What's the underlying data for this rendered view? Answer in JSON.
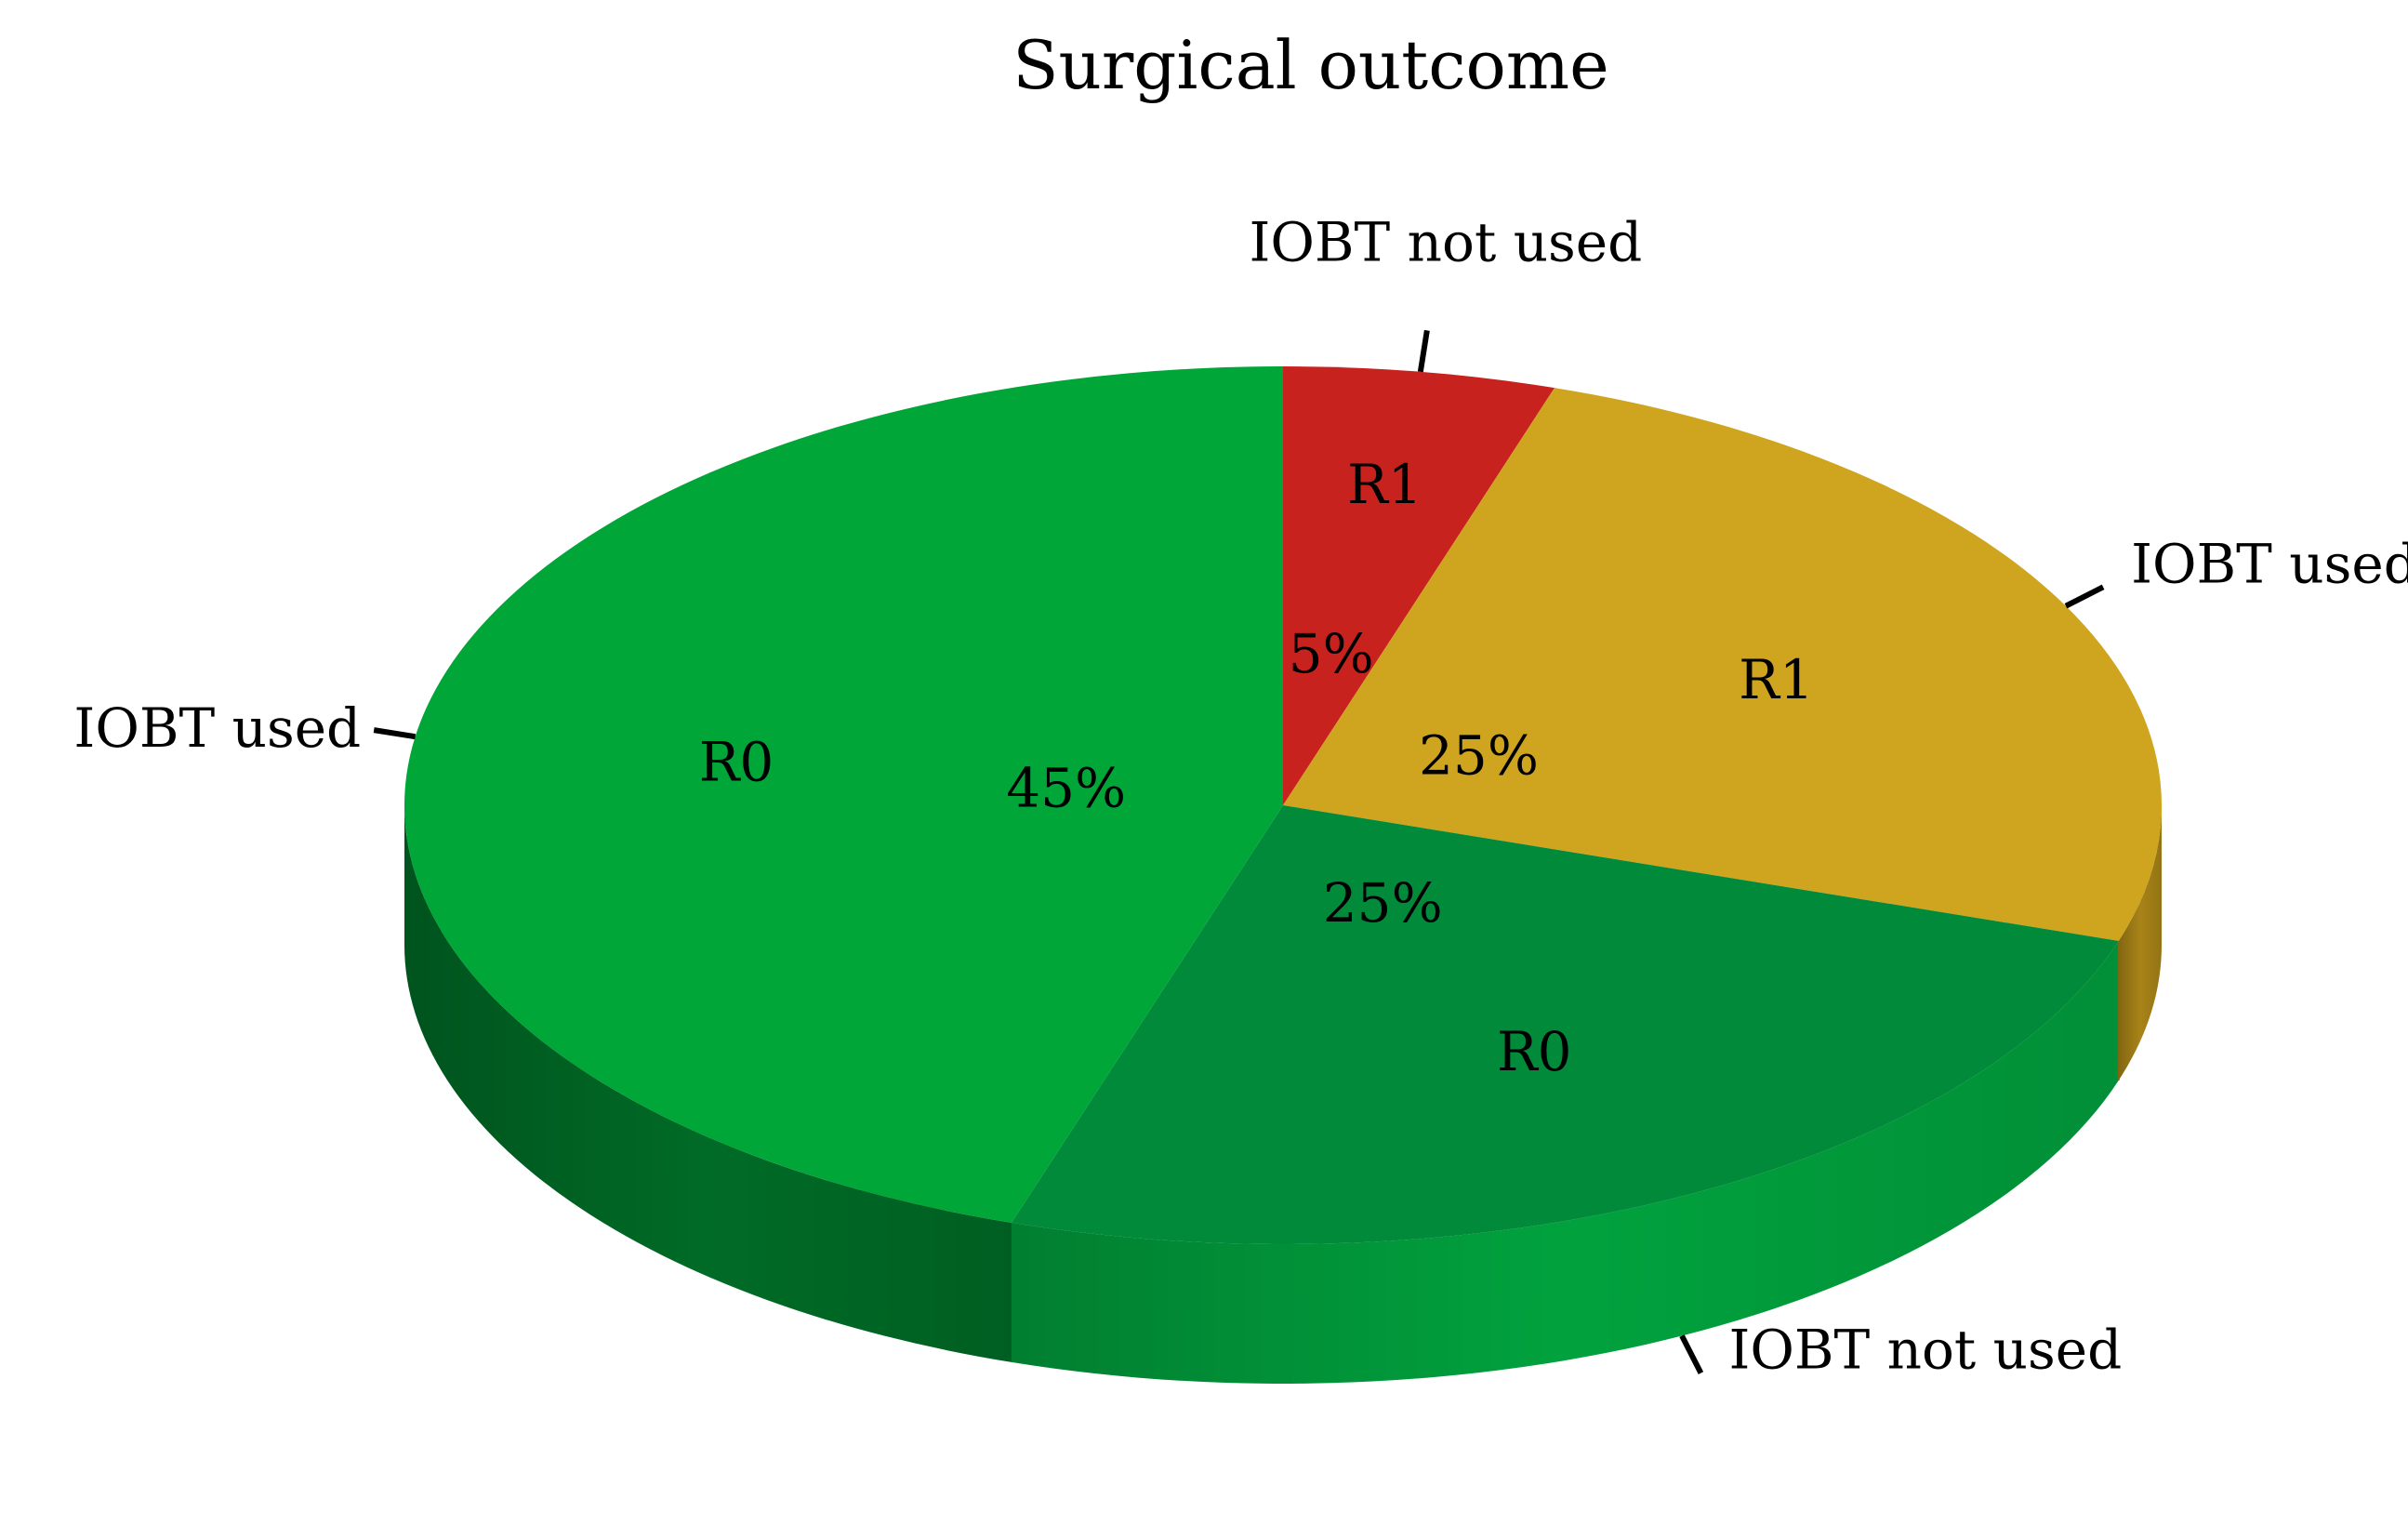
{
  "chart_data": {
    "type": "pie",
    "title": "Surgical outcome",
    "three_d": true,
    "start_angle_deg": 0,
    "direction": "clockwise",
    "slices": [
      {
        "outcome": "R1",
        "category": "IOBT not used",
        "value": 5,
        "label": "5%",
        "color": "#c8221f",
        "side_color": "#8c1714"
      },
      {
        "outcome": "R1",
        "category": "IOBT used",
        "value": 25,
        "label": "25%",
        "color": "#cfa51f",
        "side_color": "#a88317"
      },
      {
        "outcome": "R0",
        "category": "IOBT not used",
        "value": 25,
        "label": "25%",
        "color": "#018a3a",
        "side_color": "#01a23e"
      },
      {
        "outcome": "R0",
        "category": "IOBT used",
        "value": 45,
        "label": "45%",
        "color": "#00a637",
        "side_color": "#006b26"
      }
    ]
  }
}
